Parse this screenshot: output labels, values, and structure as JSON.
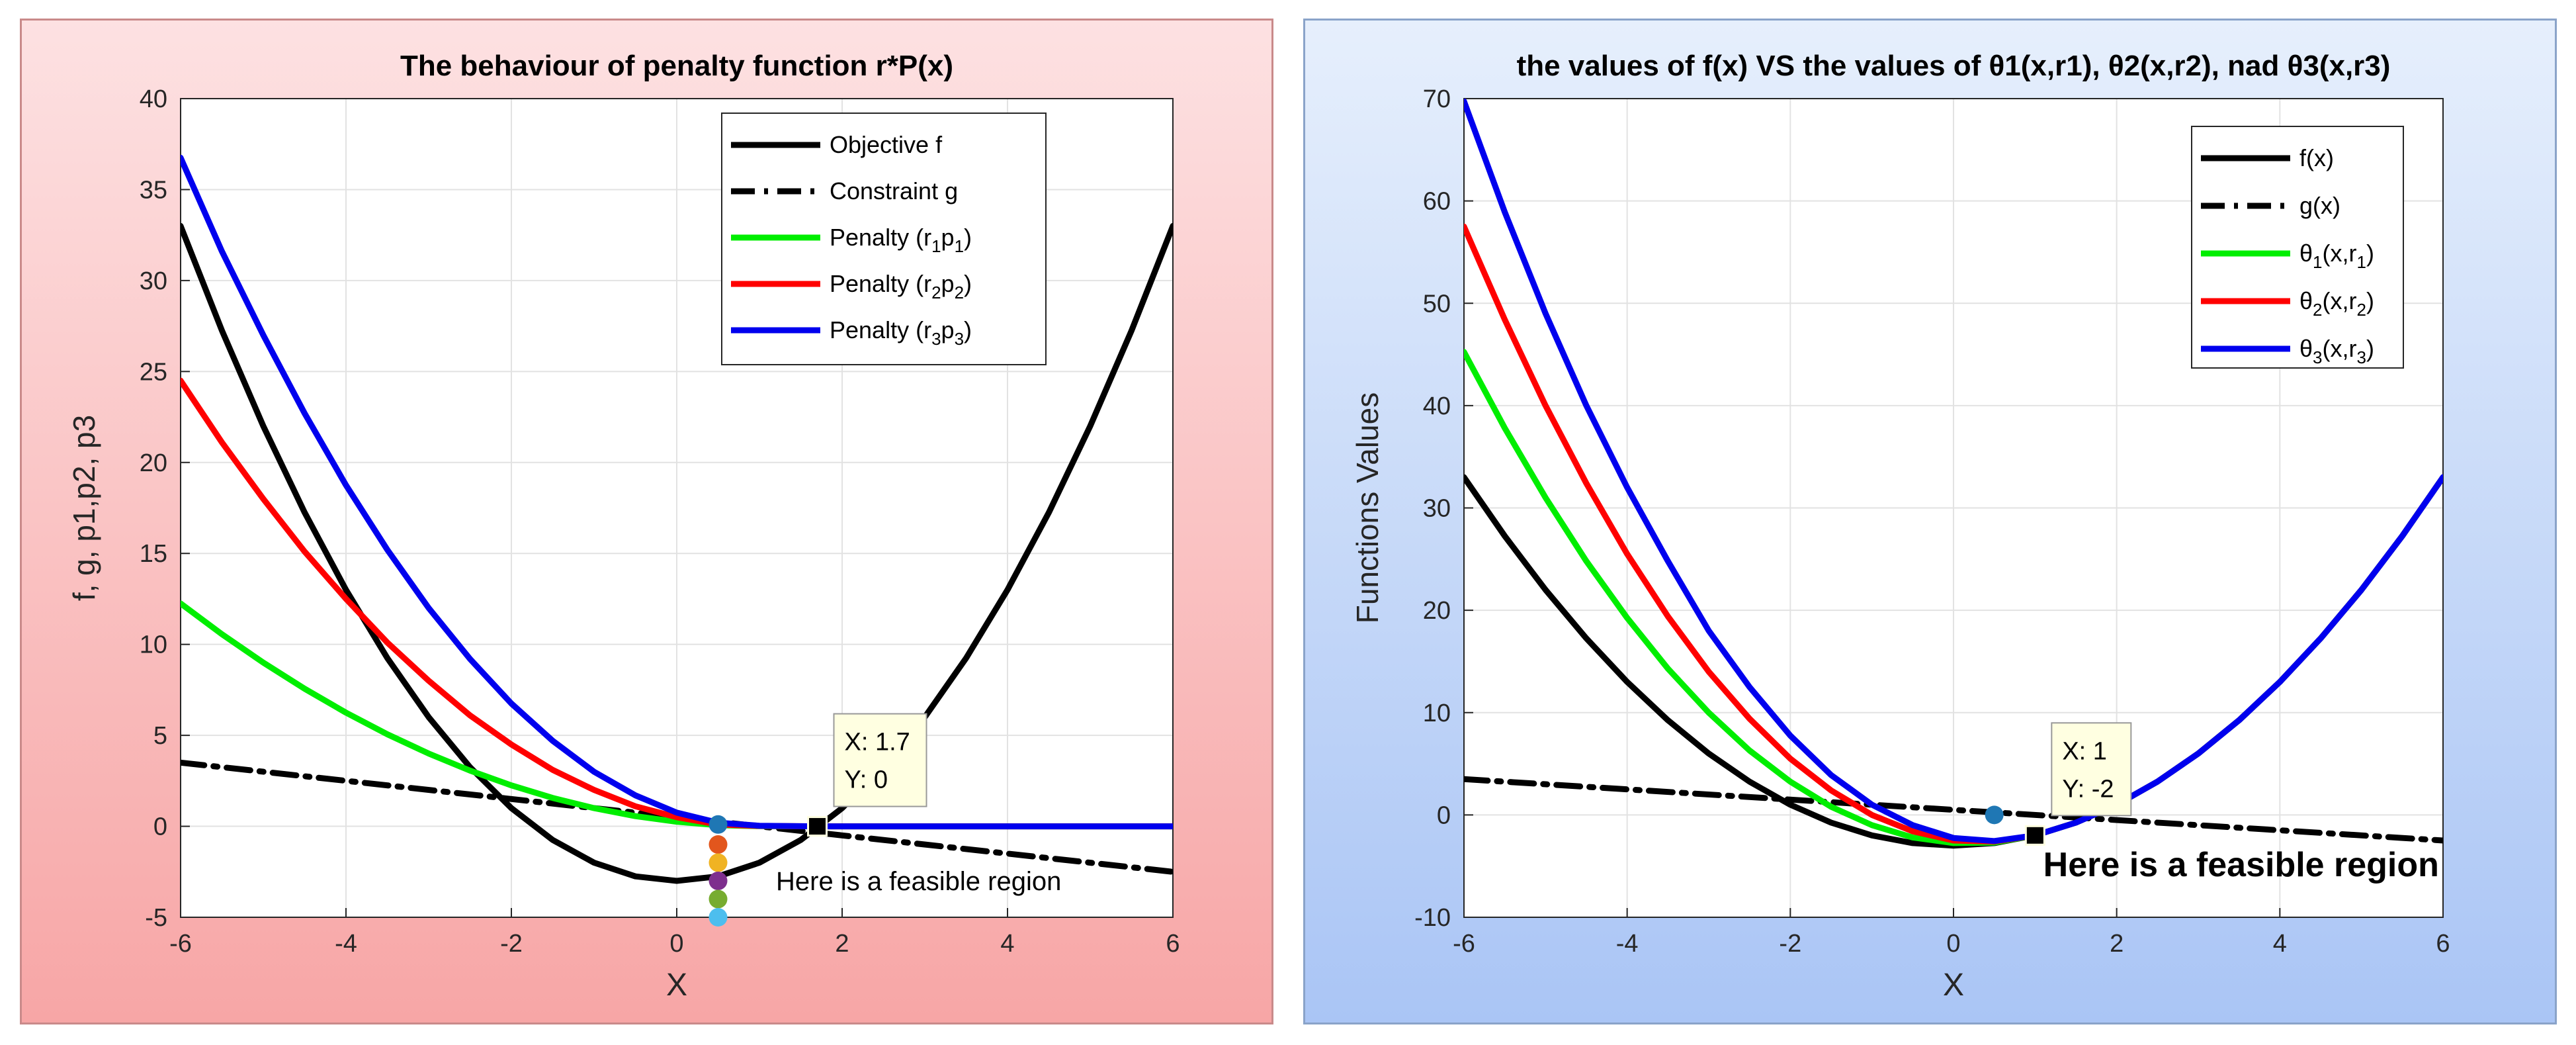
{
  "charts": [
    {
      "id": "left",
      "background": [
        "#fde1e2",
        "#f7a6a6"
      ],
      "title_text": "The behaviour of penalty function r*P(x)",
      "xlabel": "X",
      "ylabel": "f, g, p1,p2, p3",
      "legend_items": [
        {
          "label": "Objective f"
        },
        {
          "label": "Constraint g"
        },
        {
          "label": "Penalty (r",
          "sub1": "1",
          "mid": "p",
          "sub2": "1",
          "tail": ")"
        },
        {
          "label": "Penalty (r",
          "sub1": "2",
          "mid": "p",
          "sub2": "2",
          "tail": ")"
        },
        {
          "label": "Penalty  (r",
          "sub1": "3",
          "mid": "p",
          "sub2": "3",
          "tail": ")"
        }
      ],
      "datatip": {
        "line1": "X: 1.7",
        "line2": "Y: 0"
      },
      "annotation": "Here is a feasible region"
    },
    {
      "id": "right",
      "background": [
        "#e6effc",
        "#aac5f5"
      ],
      "title_text": "the values of f(x) VS the values of θ1(x,r1), θ2(x,r2), nad θ3(x,r3)",
      "xlabel": "X",
      "ylabel": "Functions Values",
      "legend_items": [
        {
          "label": "f(x)"
        },
        {
          "label": "g(x)"
        },
        {
          "label": "θ",
          "sub1": "1",
          "mid": "(x,r",
          "sub2": "1",
          "tail": ")"
        },
        {
          "label": "θ",
          "sub1": "2",
          "mid": "(x,r",
          "sub2": "2",
          "tail": ")"
        },
        {
          "label": "θ",
          "sub1": "3",
          "mid": "(x,r",
          "sub2": "3",
          "tail": ")"
        }
      ],
      "datatip": {
        "line1": "X: 1",
        "line2": "Y: -2"
      },
      "annotation": "Here is a feasible region"
    }
  ],
  "chart_data": [
    {
      "type": "line",
      "title": "The behaviour of penalty function r*P(x)",
      "xlabel": "X",
      "ylabel": "f, g, p1,p2, p3",
      "xlim": [
        -6,
        6
      ],
      "ylim": [
        -5,
        40
      ],
      "xticks": [
        -6,
        -4,
        -2,
        0,
        2,
        4,
        6
      ],
      "yticks": [
        -5,
        0,
        5,
        10,
        15,
        20,
        25,
        30,
        35,
        40
      ],
      "grid": true,
      "legend_position": "top-right",
      "series": [
        {
          "name": "Objective f",
          "color": "#000000",
          "style": "solid",
          "x": [
            -6,
            -5.5,
            -5,
            -4.5,
            -4,
            -3.5,
            -3,
            -2.5,
            -2,
            -1.5,
            -1,
            -0.5,
            0,
            0.5,
            1,
            1.5,
            2,
            2.5,
            3,
            3.5,
            4,
            4.5,
            5,
            5.5,
            6
          ],
          "y": [
            33,
            27.25,
            22,
            17.25,
            13,
            9.25,
            6,
            3.25,
            1,
            -0.75,
            -2,
            -2.75,
            -3,
            -2.75,
            -2,
            -0.75,
            1,
            3.25,
            6,
            9.25,
            13,
            17.25,
            22,
            27.25,
            33
          ]
        },
        {
          "name": "Constraint g",
          "color": "#000000",
          "style": "dashdot",
          "x": [
            -6,
            6
          ],
          "y": [
            3.5,
            -2.5
          ]
        },
        {
          "name": "Penalty (r1p1)",
          "color": "#00ee00",
          "style": "solid",
          "x": [
            -6,
            -5.5,
            -5,
            -4.5,
            -4,
            -3.5,
            -3,
            -2.5,
            -2,
            -1.5,
            -1,
            -0.5,
            0,
            0.5,
            1,
            1.7,
            2,
            3,
            4,
            5,
            6
          ],
          "y": [
            12.25,
            10.56,
            9,
            7.56,
            6.25,
            5.06,
            4,
            3.06,
            2.25,
            1.56,
            1,
            0.56,
            0.25,
            0.06,
            0.01,
            0,
            0,
            0,
            0,
            0,
            0
          ]
        },
        {
          "name": "Penalty (r2p2)",
          "color": "#ff0000",
          "style": "solid",
          "x": [
            -6,
            -5.5,
            -5,
            -4.5,
            -4,
            -3.5,
            -3,
            -2.5,
            -2,
            -1.5,
            -1,
            -0.5,
            0,
            0.5,
            1,
            1.7,
            2,
            3,
            4,
            5,
            6
          ],
          "y": [
            24.5,
            21.1,
            18,
            15.1,
            12.5,
            10.1,
            8,
            6.1,
            4.5,
            3.1,
            2,
            1.1,
            0.5,
            0.1,
            0.02,
            0,
            0,
            0,
            0,
            0,
            0
          ]
        },
        {
          "name": "Penalty (r3p3)",
          "color": "#0000ee",
          "style": "solid",
          "x": [
            -6,
            -5.5,
            -5,
            -4.5,
            -4,
            -3.5,
            -3,
            -2.5,
            -2,
            -1.5,
            -1,
            -0.5,
            0,
            0.5,
            1,
            1.7,
            2,
            3,
            4,
            5,
            6
          ],
          "y": [
            36.75,
            31.6,
            27,
            22.7,
            18.75,
            15.2,
            12,
            9.2,
            6.75,
            4.7,
            3,
            1.7,
            0.75,
            0.2,
            0.03,
            0,
            0,
            0,
            0,
            0,
            0
          ]
        }
      ],
      "markers": [
        {
          "x": 0.5,
          "y": 0.1,
          "color": "#1f77b4"
        },
        {
          "x": 0.5,
          "y": -1,
          "color": "#e2561d"
        },
        {
          "x": 0.5,
          "y": -2,
          "color": "#f0b323"
        },
        {
          "x": 0.5,
          "y": -3,
          "color": "#7e2f8e"
        },
        {
          "x": 0.5,
          "y": -4,
          "color": "#77ac30"
        },
        {
          "x": 0.5,
          "y": -5,
          "color": "#4dbeee"
        }
      ],
      "datatip": {
        "x": 1.7,
        "y": 0,
        "label_x": "X: 1.7",
        "label_y": "Y: 0"
      },
      "annotation": {
        "text": "Here is a feasible region",
        "x": 1.2,
        "y": -3.5
      }
    },
    {
      "type": "line",
      "title": "the values of f(x) VS the values of θ1(x,r1), θ2(x,r2), nad θ3(x,r3)",
      "xlabel": "X",
      "ylabel": "Functions Values",
      "xlim": [
        -6,
        6
      ],
      "ylim": [
        -10,
        70
      ],
      "xticks": [
        -6,
        -4,
        -2,
        0,
        2,
        4,
        6
      ],
      "yticks": [
        -10,
        0,
        10,
        20,
        30,
        40,
        50,
        60,
        70
      ],
      "grid": true,
      "legend_position": "top-right",
      "series": [
        {
          "name": "f(x)",
          "color": "#000000",
          "style": "solid",
          "x": [
            -6,
            -5.5,
            -5,
            -4.5,
            -4,
            -3.5,
            -3,
            -2.5,
            -2,
            -1.5,
            -1,
            -0.5,
            0,
            0.5,
            1,
            1.5,
            2,
            2.5,
            3,
            3.5,
            4,
            4.5,
            5,
            5.5,
            6
          ],
          "y": [
            33,
            27.25,
            22,
            17.25,
            13,
            9.25,
            6,
            3.25,
            1,
            -0.75,
            -2,
            -2.75,
            -3,
            -2.75,
            -2,
            -0.75,
            1,
            3.25,
            6,
            9.25,
            13,
            17.25,
            22,
            27.25,
            33
          ]
        },
        {
          "name": "g(x)",
          "color": "#000000",
          "style": "dashdot",
          "x": [
            -6,
            6
          ],
          "y": [
            3.5,
            -2.5
          ]
        },
        {
          "name": "θ1(x,r1)",
          "color": "#00ee00",
          "style": "solid",
          "x": [
            -6,
            -5.5,
            -5,
            -4.5,
            -4,
            -3.5,
            -3,
            -2.5,
            -2,
            -1.5,
            -1,
            -0.5,
            0,
            0.5,
            1
          ],
          "y": [
            45.25,
            37.8,
            31,
            24.8,
            19.25,
            14.3,
            10,
            6.3,
            3.25,
            0.8,
            -1,
            -2.2,
            -2.75,
            -2.7,
            -2
          ]
        },
        {
          "name": "θ2(x,r2)",
          "color": "#ff0000",
          "style": "solid",
          "x": [
            -6,
            -5.5,
            -5,
            -4.5,
            -4,
            -3.5,
            -3,
            -2.5,
            -2,
            -1.5,
            -1,
            -0.5,
            0,
            0.5,
            1
          ],
          "y": [
            57.5,
            48.4,
            40,
            32.4,
            25.5,
            19.4,
            14,
            9.4,
            5.5,
            2.4,
            0,
            -1.6,
            -2.5,
            -2.6,
            -2
          ]
        },
        {
          "name": "θ3(x,r3)",
          "color": "#0000ee",
          "style": "solid",
          "x": [
            -6,
            -5.5,
            -5,
            -4.5,
            -4,
            -3.5,
            -3,
            -2.5,
            -2,
            -1.5,
            -1,
            -0.5,
            0,
            0.5,
            1,
            1.5,
            2,
            2.5,
            3,
            3.5,
            4,
            4.5,
            5,
            5.5,
            6
          ],
          "y": [
            69.75,
            58.9,
            49,
            40,
            32,
            24.8,
            18,
            12.5,
            7.75,
            3.9,
            1,
            -1,
            -2.25,
            -2.55,
            -2,
            -0.75,
            1,
            3.25,
            6,
            9.25,
            13,
            17.25,
            22,
            27.25,
            33
          ]
        }
      ],
      "markers": [
        {
          "x": 0.5,
          "y": 0,
          "color": "#1f77b4"
        }
      ],
      "datatip": {
        "x": 1,
        "y": -2,
        "label_x": "X: 1",
        "label_y": "Y: -2"
      },
      "annotation": {
        "text": "Here is a feasible region",
        "x": 1.1,
        "y": -6
      }
    }
  ]
}
